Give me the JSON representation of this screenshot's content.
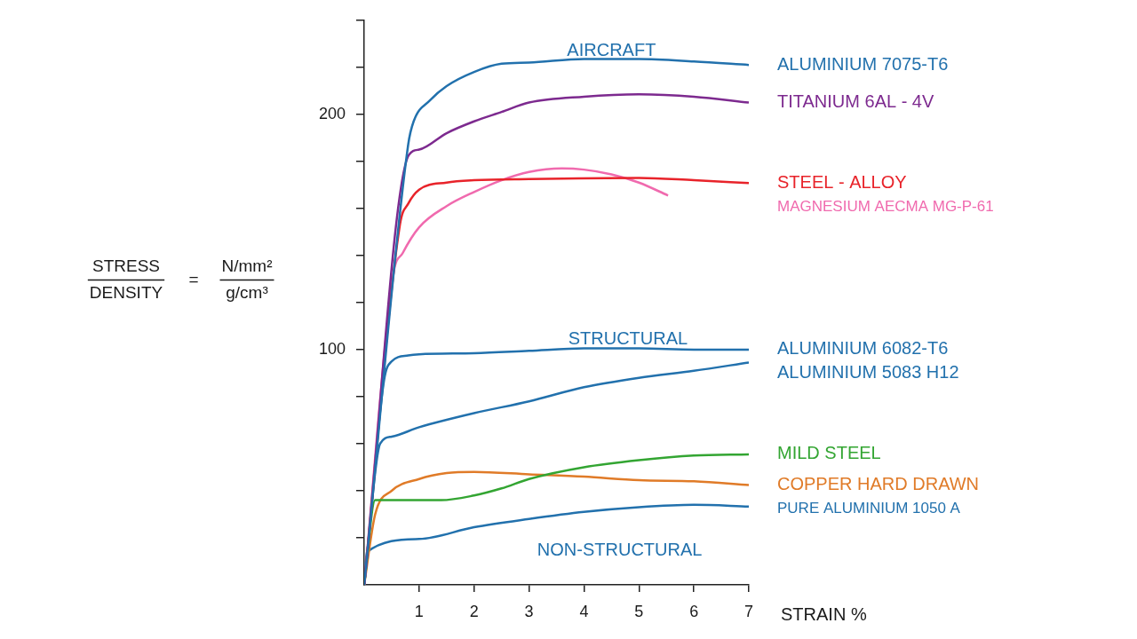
{
  "chart_data": {
    "type": "line",
    "x_label": "STRAIN %",
    "y_label": {
      "numerator": "STRESS",
      "denominator": "DENSITY",
      "equals": "=",
      "unit_numerator": "N/mm²",
      "unit_denominator": "g/cm³"
    },
    "xlim": [
      0,
      7
    ],
    "xticks": [
      1,
      2,
      3,
      4,
      5,
      6,
      7
    ],
    "ylim": [
      0,
      240
    ],
    "yticks": [
      {
        "value": 20,
        "label": null
      },
      {
        "value": 40,
        "label": null
      },
      {
        "value": 60,
        "label": null
      },
      {
        "value": 80,
        "label": null
      },
      100,
      {
        "value": 120,
        "label": null
      },
      {
        "value": 140,
        "label": null
      },
      {
        "value": 160,
        "label": null
      },
      {
        "value": 180,
        "label": null
      },
      200,
      {
        "value": 220,
        "label": null
      },
      {
        "value": 240,
        "label": null
      }
    ],
    "grid": false,
    "legend": "right",
    "annotations": [
      {
        "text": "AIRCRAFT",
        "x": 4.5,
        "y": 227
      },
      {
        "text": "STRUCTURAL",
        "x": 4.8,
        "y": 104.5
      },
      {
        "text": "NON-STRUCTURAL",
        "x": 4.65,
        "y": 14.4
      }
    ],
    "series": [
      {
        "name": "ALUMINIUM 7075-T6",
        "color": "#2271ad",
        "x": [
          0,
          0.8,
          0.9,
          1.2,
          1.5,
          2,
          2.5,
          3,
          4,
          5,
          6,
          7
        ],
        "values": [
          0,
          187,
          197,
          206,
          212,
          218,
          221.5,
          222,
          223.5,
          223.5,
          222.5,
          221
        ]
      },
      {
        "name": "TITANIUM 6AL - 4V",
        "color": "#7d2a8f",
        "x": [
          0,
          0.81,
          1,
          1.5,
          2,
          2.5,
          3,
          4,
          5,
          6,
          7
        ],
        "values": [
          0,
          182.6,
          185,
          192,
          197,
          201,
          205,
          207.5,
          208.5,
          207.5,
          205
        ]
      },
      {
        "name": "STEEL - ALLOY",
        "color": "#e8232a",
        "x": [
          0,
          0.65,
          0.8,
          1,
          1.5,
          2,
          3,
          5,
          6,
          7
        ],
        "values": [
          0,
          153,
          162,
          168,
          171,
          172,
          172.5,
          173,
          172,
          170.8
        ]
      },
      {
        "name": "MAGNESIUM AECMA MG-P-61",
        "color": "#f06aae",
        "x": [
          0,
          0.53,
          0.7,
          1,
          1.5,
          2,
          2.5,
          3,
          3.6,
          4,
          4.5,
          5,
          5.53
        ],
        "values": [
          0,
          132,
          141,
          152,
          161,
          167,
          172,
          175.5,
          177,
          176.5,
          174.5,
          171,
          165.5
        ]
      },
      {
        "name": "ALUMINIUM 6082-T6",
        "color": "#2271ad",
        "x": [
          0,
          0.36,
          0.5,
          0.8,
          1,
          2,
          3,
          4,
          5,
          6,
          7
        ],
        "values": [
          0,
          86.7,
          95,
          97.5,
          98,
          98.5,
          99.5,
          100.5,
          100.5,
          100,
          100
        ]
      },
      {
        "name": "ALUMINIUM 5083 H12",
        "color": "#2271ad",
        "x": [
          0,
          0.29,
          0.5,
          1,
          2,
          3,
          4,
          5,
          6,
          7
        ],
        "values": [
          0,
          60,
          63,
          67,
          73,
          78,
          84,
          88,
          91,
          94.5
        ]
      },
      {
        "name": "MILD STEEL",
        "color": "#33a532",
        "x": [
          0,
          0.2,
          1.4,
          2,
          2.5,
          3,
          4,
          5,
          6,
          7
        ],
        "values": [
          0,
          36,
          36,
          38,
          41,
          45,
          50,
          53,
          55,
          55.5
        ]
      },
      {
        "name": "COPPER HARD DRAWN",
        "color": "#e07b28",
        "x": [
          0,
          0.2,
          0.5,
          1,
          1.5,
          2,
          3,
          4,
          5,
          6,
          7
        ],
        "values": [
          0,
          30,
          40,
          45,
          47.5,
          48,
          47,
          46,
          44.5,
          44,
          42.4
        ]
      },
      {
        "name": "PURE ALUMINIUM 1050 A",
        "color": "#2271ad",
        "x": [
          0,
          0.05,
          1,
          2,
          3,
          4,
          5,
          6,
          7
        ],
        "values": [
          0,
          14,
          19.5,
          24.5,
          28,
          31,
          33,
          34,
          33.3
        ]
      }
    ]
  }
}
